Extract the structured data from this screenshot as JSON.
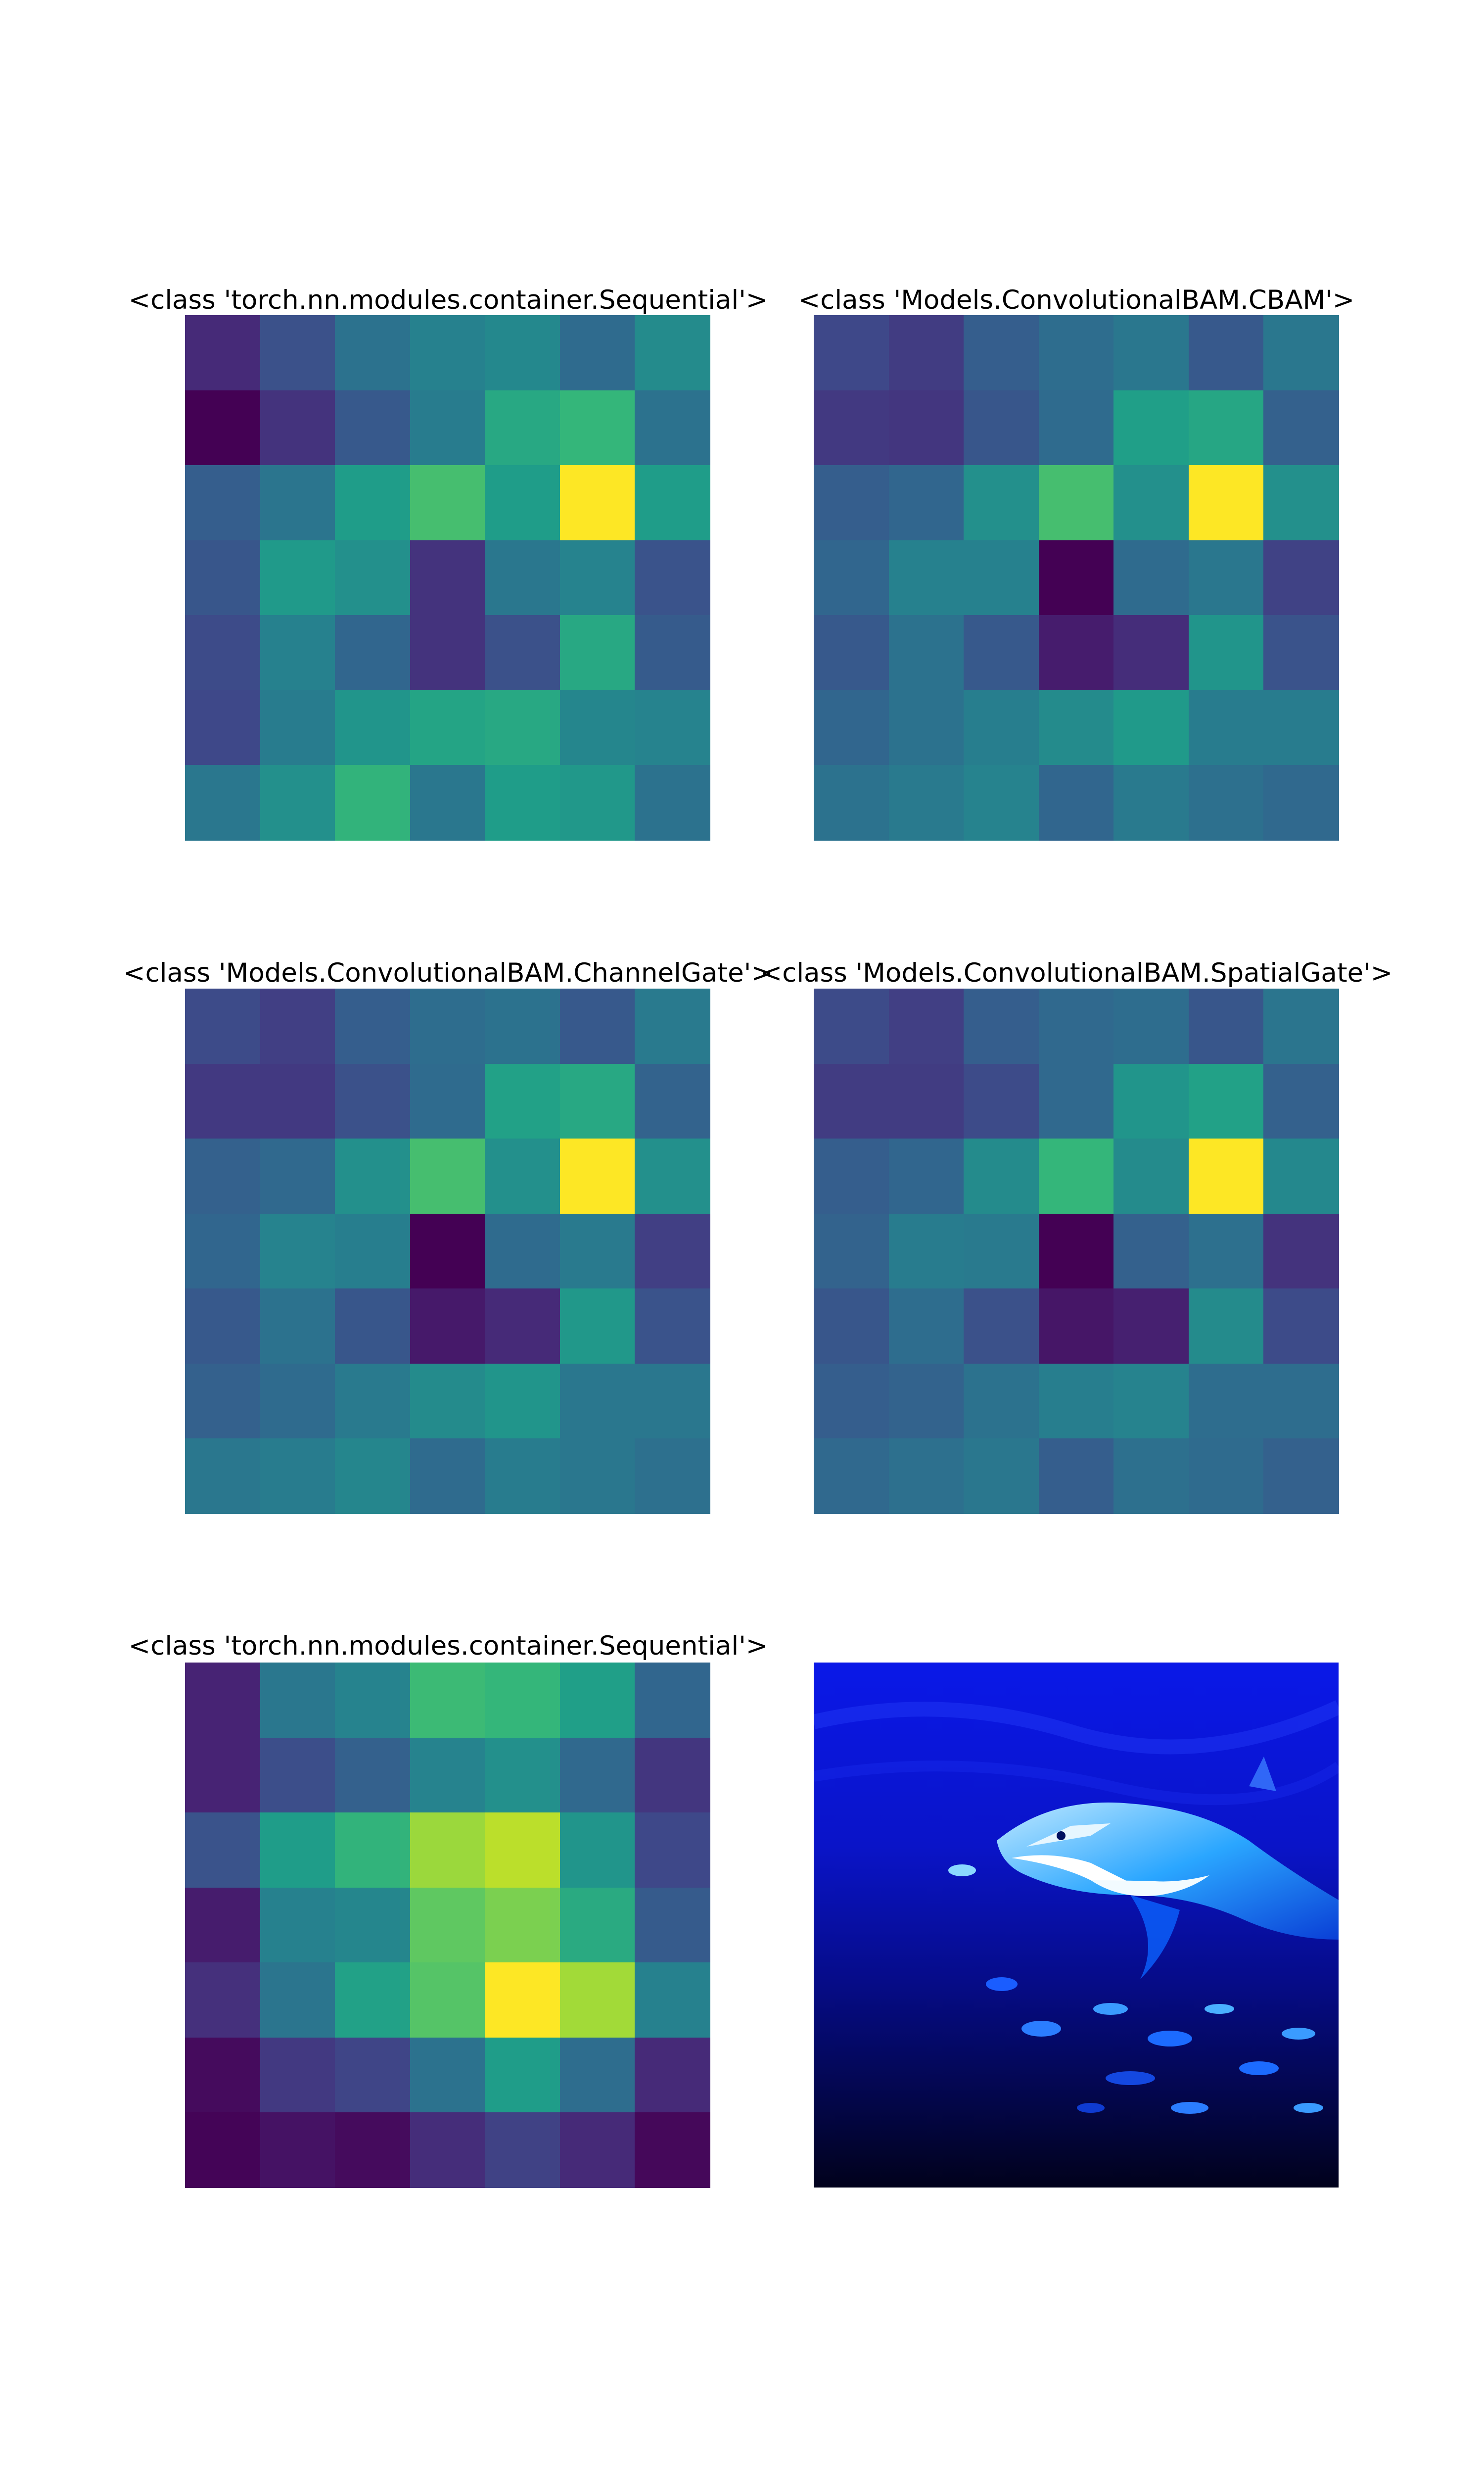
{
  "chart_data": [
    {
      "type": "heatmap",
      "title": "<class 'torch.nn.modules.container.Sequential'>",
      "colormap": "viridis",
      "rows": 7,
      "cols": 7,
      "values": [
        [
          0.12,
          0.25,
          0.38,
          0.44,
          0.47,
          0.35,
          0.48
        ],
        [
          0.0,
          0.15,
          0.28,
          0.42,
          0.6,
          0.66,
          0.38
        ],
        [
          0.3,
          0.39,
          0.55,
          0.7,
          0.55,
          1.0,
          0.55
        ],
        [
          0.27,
          0.54,
          0.5,
          0.15,
          0.4,
          0.45,
          0.26
        ],
        [
          0.23,
          0.44,
          0.33,
          0.15,
          0.25,
          0.6,
          0.29
        ],
        [
          0.22,
          0.42,
          0.52,
          0.58,
          0.6,
          0.46,
          0.45
        ],
        [
          0.4,
          0.5,
          0.65,
          0.4,
          0.55,
          0.53,
          0.38
        ]
      ]
    },
    {
      "type": "heatmap",
      "title": "<class 'Models.ConvolutionalBAM.CBAM'>",
      "colormap": "viridis",
      "rows": 7,
      "cols": 7,
      "values": [
        [
          0.22,
          0.18,
          0.3,
          0.36,
          0.4,
          0.28,
          0.4
        ],
        [
          0.17,
          0.16,
          0.27,
          0.35,
          0.56,
          0.59,
          0.31
        ],
        [
          0.3,
          0.33,
          0.5,
          0.7,
          0.5,
          1.0,
          0.5
        ],
        [
          0.33,
          0.44,
          0.44,
          0.0,
          0.35,
          0.4,
          0.2
        ],
        [
          0.28,
          0.38,
          0.28,
          0.08,
          0.13,
          0.52,
          0.26
        ],
        [
          0.33,
          0.38,
          0.43,
          0.48,
          0.54,
          0.42,
          0.42
        ],
        [
          0.38,
          0.41,
          0.45,
          0.33,
          0.41,
          0.37,
          0.34
        ]
      ]
    },
    {
      "type": "heatmap",
      "title": "<class 'Models.ConvolutionalBAM.ChannelGate'>",
      "colormap": "viridis",
      "rows": 7,
      "cols": 7,
      "values": [
        [
          0.23,
          0.19,
          0.3,
          0.36,
          0.38,
          0.28,
          0.41
        ],
        [
          0.17,
          0.17,
          0.25,
          0.35,
          0.57,
          0.6,
          0.32
        ],
        [
          0.31,
          0.34,
          0.5,
          0.7,
          0.5,
          1.0,
          0.5
        ],
        [
          0.33,
          0.45,
          0.43,
          0.0,
          0.35,
          0.41,
          0.19
        ],
        [
          0.28,
          0.38,
          0.27,
          0.07,
          0.12,
          0.53,
          0.26
        ],
        [
          0.31,
          0.35,
          0.41,
          0.48,
          0.52,
          0.4,
          0.4
        ],
        [
          0.4,
          0.42,
          0.46,
          0.35,
          0.42,
          0.4,
          0.37
        ]
      ]
    },
    {
      "type": "heatmap",
      "title": "<class 'Models.ConvolutionalBAM.SpatialGate'>",
      "colormap": "viridis",
      "rows": 7,
      "cols": 7,
      "values": [
        [
          0.23,
          0.19,
          0.3,
          0.34,
          0.36,
          0.27,
          0.39
        ],
        [
          0.18,
          0.18,
          0.23,
          0.34,
          0.52,
          0.57,
          0.31
        ],
        [
          0.3,
          0.33,
          0.48,
          0.66,
          0.48,
          1.0,
          0.47
        ],
        [
          0.32,
          0.42,
          0.41,
          0.0,
          0.31,
          0.37,
          0.15
        ],
        [
          0.27,
          0.36,
          0.25,
          0.06,
          0.09,
          0.48,
          0.23
        ],
        [
          0.3,
          0.32,
          0.38,
          0.43,
          0.45,
          0.36,
          0.36
        ],
        [
          0.34,
          0.37,
          0.4,
          0.3,
          0.37,
          0.35,
          0.31
        ]
      ]
    },
    {
      "type": "heatmap",
      "title": "<class 'torch.nn.modules.container.Sequential'>",
      "colormap": "viridis",
      "rows": 7,
      "cols": 7,
      "values": [
        [
          0.1,
          0.4,
          0.45,
          0.68,
          0.66,
          0.56,
          0.33
        ],
        [
          0.1,
          0.24,
          0.31,
          0.45,
          0.5,
          0.34,
          0.16
        ],
        [
          0.26,
          0.55,
          0.65,
          0.85,
          0.9,
          0.52,
          0.22
        ],
        [
          0.08,
          0.44,
          0.46,
          0.75,
          0.8,
          0.61,
          0.29
        ],
        [
          0.14,
          0.39,
          0.57,
          0.73,
          1.0,
          0.86,
          0.44
        ],
        [
          0.03,
          0.17,
          0.21,
          0.38,
          0.55,
          0.36,
          0.12
        ],
        [
          0.01,
          0.05,
          0.03,
          0.13,
          0.2,
          0.12,
          0.02
        ]
      ]
    }
  ],
  "image_panel": {
    "subject": "shark",
    "tint": "#0a18e8"
  }
}
